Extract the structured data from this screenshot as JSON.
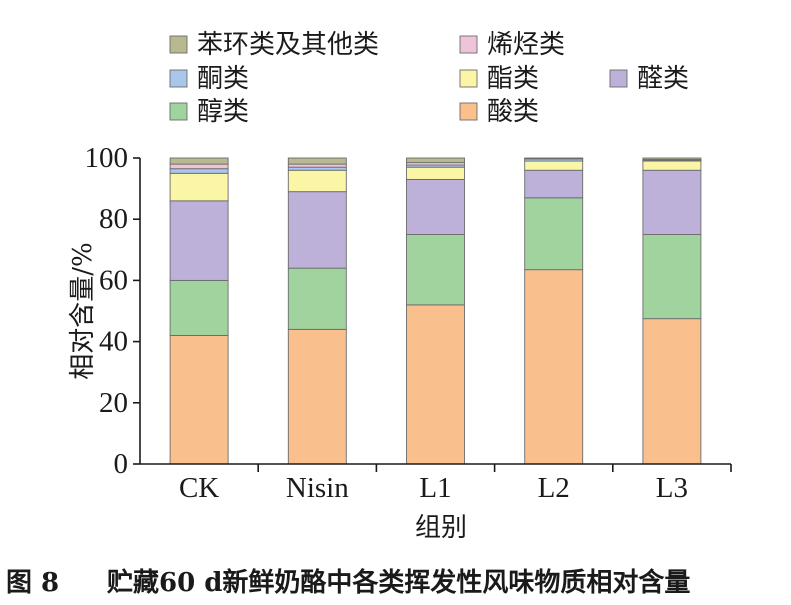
{
  "chart_data": {
    "type": "stacked-bar",
    "categories": [
      "CK",
      "Nisin",
      "L1",
      "L2",
      "L3"
    ],
    "ylabel": "相对含量/%",
    "xlabel": "组别",
    "ylim": [
      0,
      100
    ],
    "yticks": [
      0,
      20,
      40,
      60,
      80,
      100
    ],
    "legend_placement": "top",
    "series": [
      {
        "name": "酸类",
        "color": "#f9c08e",
        "values": [
          42,
          44,
          52,
          63.5,
          47.5
        ]
      },
      {
        "name": "醇类",
        "color": "#a0d39d",
        "values": [
          18,
          20,
          23,
          23.5,
          27.5
        ]
      },
      {
        "name": "醛类",
        "color": "#bdb1d9",
        "values": [
          26,
          25,
          18,
          9,
          21
        ]
      },
      {
        "name": "酯类",
        "color": "#fbf6a6",
        "values": [
          9,
          7,
          4,
          3,
          3
        ]
      },
      {
        "name": "酮类",
        "color": "#a9c7eb",
        "values": [
          1.5,
          1,
          0.7,
          0.7,
          0.3
        ]
      },
      {
        "name": "烯烃类",
        "color": "#efc4d9",
        "values": [
          1.5,
          1,
          0.8,
          0.1,
          0.2
        ]
      },
      {
        "name": "苯环类及其他类",
        "color": "#b8b891",
        "values": [
          2,
          2,
          1.5,
          0.2,
          0.5
        ]
      }
    ]
  },
  "caption": {
    "figure_label": "图 8",
    "text": "贮藏60 d新鲜奶酪中各类挥发性风味物质相对含量"
  }
}
